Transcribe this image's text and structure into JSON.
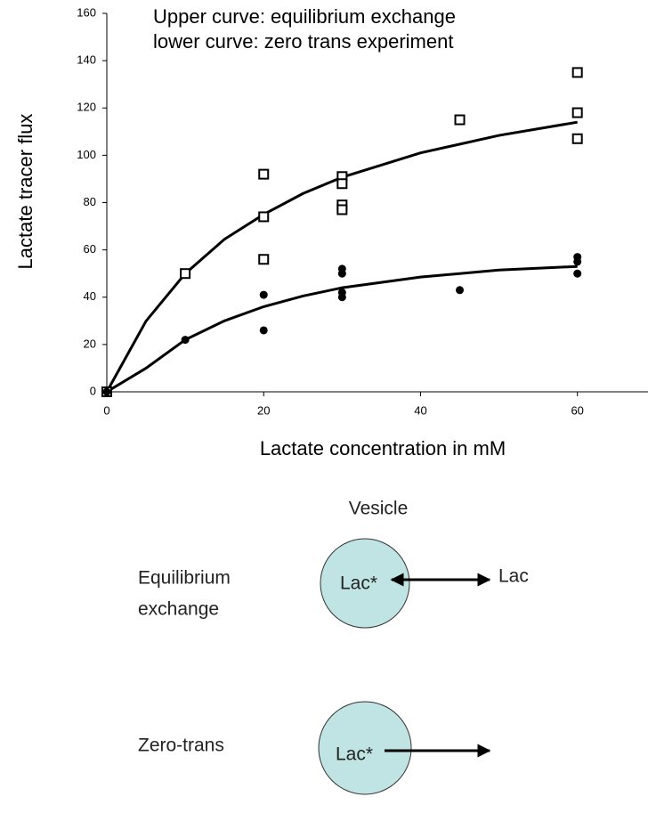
{
  "chart_data": {
    "type": "scatter",
    "annotations": [
      "Upper curve: equilibrium exchange",
      "lower curve: zero trans experiment"
    ],
    "x_label": "Lactate concentration in mM",
    "y_label": "Lactate tracer flux",
    "xlim": [
      0,
      69
    ],
    "xticks": [
      0,
      20,
      40,
      60
    ],
    "ylim": [
      0,
      160
    ],
    "yticks": [
      0,
      20,
      40,
      60,
      80,
      100,
      120,
      140,
      160
    ],
    "series": [
      {
        "marker": "square",
        "color": "#000000",
        "x": [
          0,
          10,
          20,
          20,
          20,
          30,
          30,
          30,
          30,
          45,
          60,
          60,
          60
        ],
        "values": [
          0,
          50,
          92,
          74,
          56,
          91,
          88,
          79,
          77,
          115,
          135,
          118,
          107
        ]
      },
      {
        "marker": "dot",
        "color": "#000000",
        "x": [
          0,
          10,
          20,
          20,
          30,
          30,
          30,
          30,
          45,
          60,
          60,
          60
        ],
        "values": [
          0,
          22,
          41,
          26,
          52,
          50,
          42,
          40,
          43,
          57,
          55,
          50
        ]
      }
    ],
    "curves": [
      {
        "color": "#000000",
        "x": [
          0,
          5,
          10,
          15,
          20,
          25,
          30,
          40,
          50,
          60
        ],
        "values": [
          0,
          29.9,
          50,
          64.5,
          75,
          83.8,
          90.7,
          101,
          108.4,
          114
        ]
      },
      {
        "color": "#000000",
        "x": [
          0,
          5,
          10,
          15,
          20,
          25,
          30,
          40,
          50,
          60
        ],
        "values": [
          0,
          10,
          22,
          30,
          36,
          40.5,
          44,
          48.5,
          51.5,
          53
        ]
      }
    ]
  },
  "diagram": {
    "title": "Vesicle",
    "rows": [
      {
        "label": [
          "Equilibrium",
          "exchange"
        ],
        "inside": "Lac*",
        "outside": "Lac"
      },
      {
        "label": [
          "Zero-trans"
        ],
        "inside": "Lac*"
      }
    ]
  }
}
